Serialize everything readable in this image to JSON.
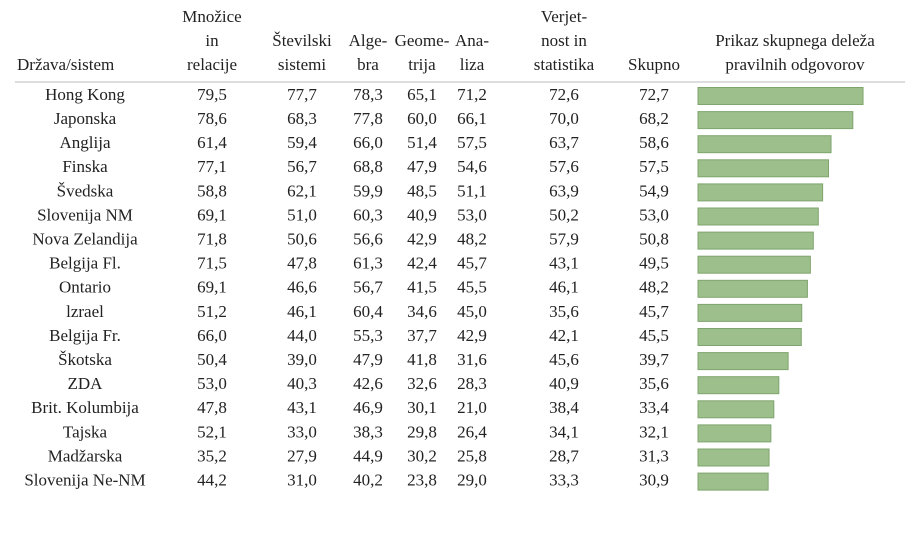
{
  "table": {
    "header": [
      [
        "Država/sistem"
      ],
      [
        "Množice",
        "in",
        "relacije"
      ],
      [
        "Številski",
        "sistemi"
      ],
      [
        "Alge-",
        "bra"
      ],
      [
        "Geome-",
        "trija"
      ],
      [
        "Ana-",
        "liza"
      ],
      [
        "Verjet-",
        "nost in",
        "statistika"
      ],
      [
        "Skupno"
      ],
      [
        "Prikaz skupnega deleža",
        "pravilnih odgovorov"
      ]
    ],
    "rows": [
      [
        "Hong Kong",
        "79,5",
        "77,7",
        "78,3",
        "65,1",
        "71,2",
        "72,6",
        "72,7"
      ],
      [
        "Japonska",
        "78,6",
        "68,3",
        "77,8",
        "60,0",
        "66,1",
        "70,0",
        "68,2"
      ],
      [
        "Anglija",
        "61,4",
        "59,4",
        "66,0",
        "51,4",
        "57,5",
        "63,7",
        "58,6"
      ],
      [
        "Finska",
        "77,1",
        "56,7",
        "68,8",
        "47,9",
        "54,6",
        "57,6",
        "57,5"
      ],
      [
        "Švedska",
        "58,8",
        "62,1",
        "59,9",
        "48,5",
        "51,1",
        "63,9",
        "54,9"
      ],
      [
        "Slovenija NM",
        "69,1",
        "51,0",
        "60,3",
        "40,9",
        "53,0",
        "50,2",
        "53,0"
      ],
      [
        "Nova Zelandija",
        "71,8",
        "50,6",
        "56,6",
        "42,9",
        "48,2",
        "57,9",
        "50,8"
      ],
      [
        "Belgija Fl.",
        "71,5",
        "47,8",
        "61,3",
        "42,4",
        "45,7",
        "43,1",
        "49,5"
      ],
      [
        "Ontario",
        "69,1",
        "46,6",
        "56,7",
        "41,5",
        "45,5",
        "46,1",
        "48,2"
      ],
      [
        "lzrael",
        "51,2",
        "46,1",
        "60,4",
        "34,6",
        "45,0",
        "35,6",
        "45,7"
      ],
      [
        "Belgija Fr.",
        "66,0",
        "44,0",
        "55,3",
        "37,7",
        "42,9",
        "42,1",
        "45,5"
      ],
      [
        "Škotska",
        "50,4",
        "39,0",
        "47,9",
        "41,8",
        "31,6",
        "45,6",
        "39,7"
      ],
      [
        "ZDA",
        "53,0",
        "40,3",
        "42,6",
        "32,6",
        "28,3",
        "40,9",
        "35,6"
      ],
      [
        "Brit. Kolumbija",
        "47,8",
        "43,1",
        "46,9",
        "30,1",
        "21,0",
        "38,4",
        "33,4"
      ],
      [
        "Tajska",
        "52,1",
        "33,0",
        "38,3",
        "29,8",
        "26,4",
        "34,1",
        "32,1"
      ],
      [
        "Madžarska",
        "35,2",
        "27,9",
        "44,9",
        "30,2",
        "25,8",
        "28,7",
        "31,3"
      ],
      [
        "Slovenija Ne-NM",
        "44,2",
        "31,0",
        "40,2",
        "23,8",
        "29,0",
        "33,3",
        "30,9"
      ]
    ],
    "bar_color": "#9dbf8b"
  }
}
